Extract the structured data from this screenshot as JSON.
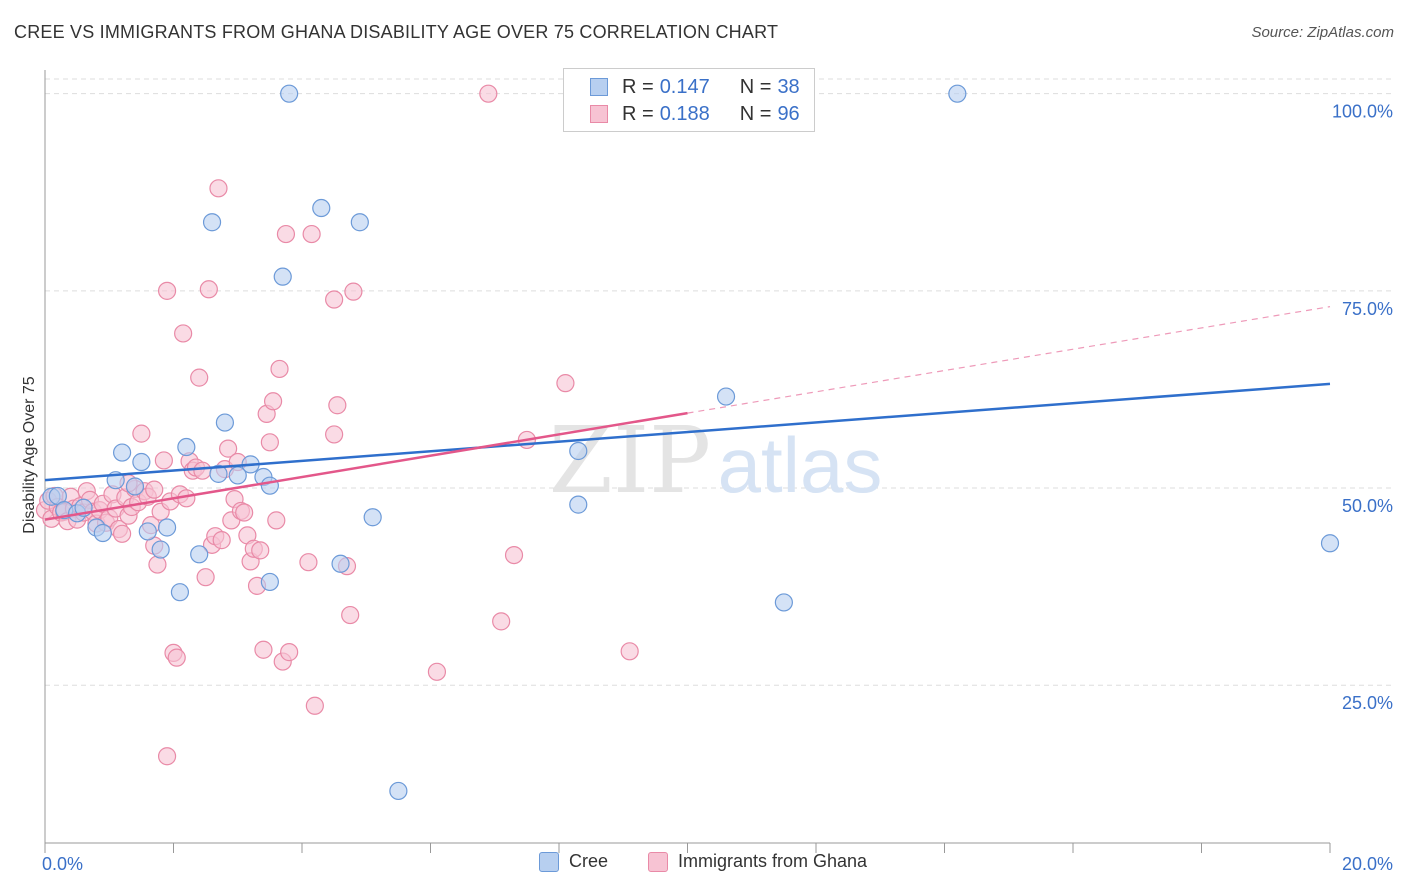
{
  "header": {
    "title": "CREE VS IMMIGRANTS FROM GHANA DISABILITY AGE OVER 75 CORRELATION CHART",
    "source": "Source: ZipAtlas.com"
  },
  "legend_top": {
    "rows": [
      {
        "r_label": "R =",
        "r_value": "0.147",
        "n_label": "N =",
        "n_value": "38"
      },
      {
        "r_label": "R =",
        "r_value": "0.188",
        "n_label": "N =",
        "n_value": "96"
      }
    ]
  },
  "watermark": {
    "zip": "ZIP",
    "atlas": "atlas"
  },
  "colors": {
    "cree_fill": "#b7cff0",
    "cree_stroke": "#6c9ad8",
    "cree_line": "#2f6fcc",
    "ghana_fill": "#f7c3d3",
    "ghana_stroke": "#e98aa7",
    "ghana_line": "#e3578a",
    "tick_label": "#3a70c8",
    "grid": "#dddddd"
  },
  "chart_data": {
    "type": "scatter",
    "title": "CREE VS IMMIGRANTS FROM GHANA DISABILITY AGE OVER 75 CORRELATION CHART",
    "xlabel": "",
    "ylabel": "Disability Age Over 75",
    "xlim": [
      0,
      20
    ],
    "ylim": [
      5,
      103
    ],
    "x_tick_labels": [
      "0.0%",
      "20.0%"
    ],
    "y_ticks": [
      25,
      50,
      75,
      100
    ],
    "y_tick_labels": [
      "25.0%",
      "50.0%",
      "75.0%",
      "100.0%"
    ],
    "legend": [
      "Cree",
      "Immigrants from Ghana"
    ],
    "series": [
      {
        "name": "Cree",
        "R": 0.147,
        "N": 38,
        "trend": {
          "x0": 0,
          "y0": 51.0,
          "x1": 20,
          "y1": 63.2
        },
        "points": [
          [
            0.1,
            48.9
          ],
          [
            0.2,
            49.0
          ],
          [
            0.3,
            47.2
          ],
          [
            0.5,
            46.8
          ],
          [
            0.6,
            47.5
          ],
          [
            0.8,
            45.0
          ],
          [
            0.9,
            44.3
          ],
          [
            1.1,
            51.0
          ],
          [
            1.2,
            54.5
          ],
          [
            1.4,
            50.2
          ],
          [
            1.5,
            53.3
          ],
          [
            1.6,
            44.5
          ],
          [
            1.8,
            42.2
          ],
          [
            1.9,
            45.0
          ],
          [
            2.1,
            36.8
          ],
          [
            2.2,
            55.2
          ],
          [
            2.4,
            41.6
          ],
          [
            2.6,
            83.7
          ],
          [
            2.7,
            51.8
          ],
          [
            2.8,
            58.3
          ],
          [
            3.0,
            51.6
          ],
          [
            3.2,
            53.0
          ],
          [
            3.4,
            51.4
          ],
          [
            3.5,
            50.3
          ],
          [
            3.5,
            38.1
          ],
          [
            3.7,
            76.8
          ],
          [
            3.8,
            100.0
          ],
          [
            4.3,
            85.5
          ],
          [
            4.6,
            40.4
          ],
          [
            4.9,
            83.7
          ],
          [
            5.1,
            46.3
          ],
          [
            5.5,
            11.6
          ],
          [
            8.3,
            54.7
          ],
          [
            8.3,
            47.9
          ],
          [
            10.6,
            61.6
          ],
          [
            11.5,
            35.5
          ],
          [
            14.2,
            100.0
          ],
          [
            20.0,
            43.0
          ]
        ]
      },
      {
        "name": "Immigrants from Ghana",
        "R": 0.188,
        "N": 96,
        "trend": {
          "x0": 0,
          "y0": 46.0,
          "x1": 10.0,
          "y1": 59.5,
          "dash_to_x": 20.0,
          "dash_to_y": 73.0
        },
        "points": [
          [
            0.0,
            47.2
          ],
          [
            0.05,
            48.4
          ],
          [
            0.1,
            46.1
          ],
          [
            0.15,
            49.0
          ],
          [
            0.2,
            47.6
          ],
          [
            0.25,
            46.9
          ],
          [
            0.3,
            47.0
          ],
          [
            0.35,
            45.8
          ],
          [
            0.4,
            48.9
          ],
          [
            0.45,
            47.4
          ],
          [
            0.5,
            46.0
          ],
          [
            0.55,
            47.7
          ],
          [
            0.6,
            46.9
          ],
          [
            0.65,
            49.6
          ],
          [
            0.7,
            48.5
          ],
          [
            0.75,
            47.0
          ],
          [
            0.8,
            45.5
          ],
          [
            0.85,
            47.2
          ],
          [
            0.9,
            48.0
          ],
          [
            0.95,
            45.6
          ],
          [
            1.0,
            46.2
          ],
          [
            1.05,
            49.2
          ],
          [
            1.1,
            47.4
          ],
          [
            1.15,
            44.8
          ],
          [
            1.2,
            44.2
          ],
          [
            1.25,
            48.8
          ],
          [
            1.3,
            46.5
          ],
          [
            1.35,
            47.6
          ],
          [
            1.4,
            49.9
          ],
          [
            1.45,
            48.2
          ],
          [
            1.5,
            56.9
          ],
          [
            1.55,
            49.6
          ],
          [
            1.6,
            48.9
          ],
          [
            1.65,
            45.3
          ],
          [
            1.7,
            42.7
          ],
          [
            1.75,
            40.3
          ],
          [
            1.8,
            47.0
          ],
          [
            1.85,
            53.5
          ],
          [
            1.9,
            75.0
          ],
          [
            1.95,
            48.3
          ],
          [
            2.0,
            29.1
          ],
          [
            2.05,
            28.5
          ],
          [
            2.1,
            49.2
          ],
          [
            2.15,
            69.6
          ],
          [
            2.2,
            48.7
          ],
          [
            2.25,
            53.4
          ],
          [
            2.3,
            52.2
          ],
          [
            2.35,
            52.6
          ],
          [
            2.4,
            64.0
          ],
          [
            2.45,
            52.2
          ],
          [
            2.5,
            38.7
          ],
          [
            2.55,
            75.2
          ],
          [
            2.6,
            42.8
          ],
          [
            2.65,
            43.9
          ],
          [
            2.7,
            88.0
          ],
          [
            2.75,
            43.4
          ],
          [
            2.8,
            52.4
          ],
          [
            2.85,
            55.0
          ],
          [
            2.9,
            45.9
          ],
          [
            2.95,
            48.6
          ],
          [
            3.0,
            53.3
          ],
          [
            3.05,
            47.1
          ],
          [
            3.1,
            46.9
          ],
          [
            3.15,
            44.0
          ],
          [
            3.2,
            40.7
          ],
          [
            3.25,
            42.3
          ],
          [
            3.3,
            37.6
          ],
          [
            3.35,
            42.1
          ],
          [
            3.4,
            29.5
          ],
          [
            3.45,
            59.4
          ],
          [
            3.5,
            55.8
          ],
          [
            3.55,
            61.0
          ],
          [
            3.6,
            45.9
          ],
          [
            3.65,
            65.1
          ],
          [
            3.7,
            28.0
          ],
          [
            3.75,
            82.2
          ],
          [
            3.8,
            29.2
          ],
          [
            4.1,
            40.6
          ],
          [
            4.15,
            82.2
          ],
          [
            4.2,
            22.4
          ],
          [
            4.5,
            56.8
          ],
          [
            4.5,
            73.9
          ],
          [
            4.55,
            60.5
          ],
          [
            4.7,
            40.1
          ],
          [
            4.75,
            33.9
          ],
          [
            4.8,
            74.9
          ],
          [
            6.1,
            26.7
          ],
          [
            6.9,
            100.0
          ],
          [
            7.1,
            33.1
          ],
          [
            7.3,
            41.5
          ],
          [
            7.5,
            56.1
          ],
          [
            8.1,
            63.3
          ],
          [
            9.1,
            29.3
          ],
          [
            1.9,
            16.0
          ],
          [
            1.3,
            50.6
          ],
          [
            1.7,
            49.8
          ]
        ]
      }
    ]
  }
}
